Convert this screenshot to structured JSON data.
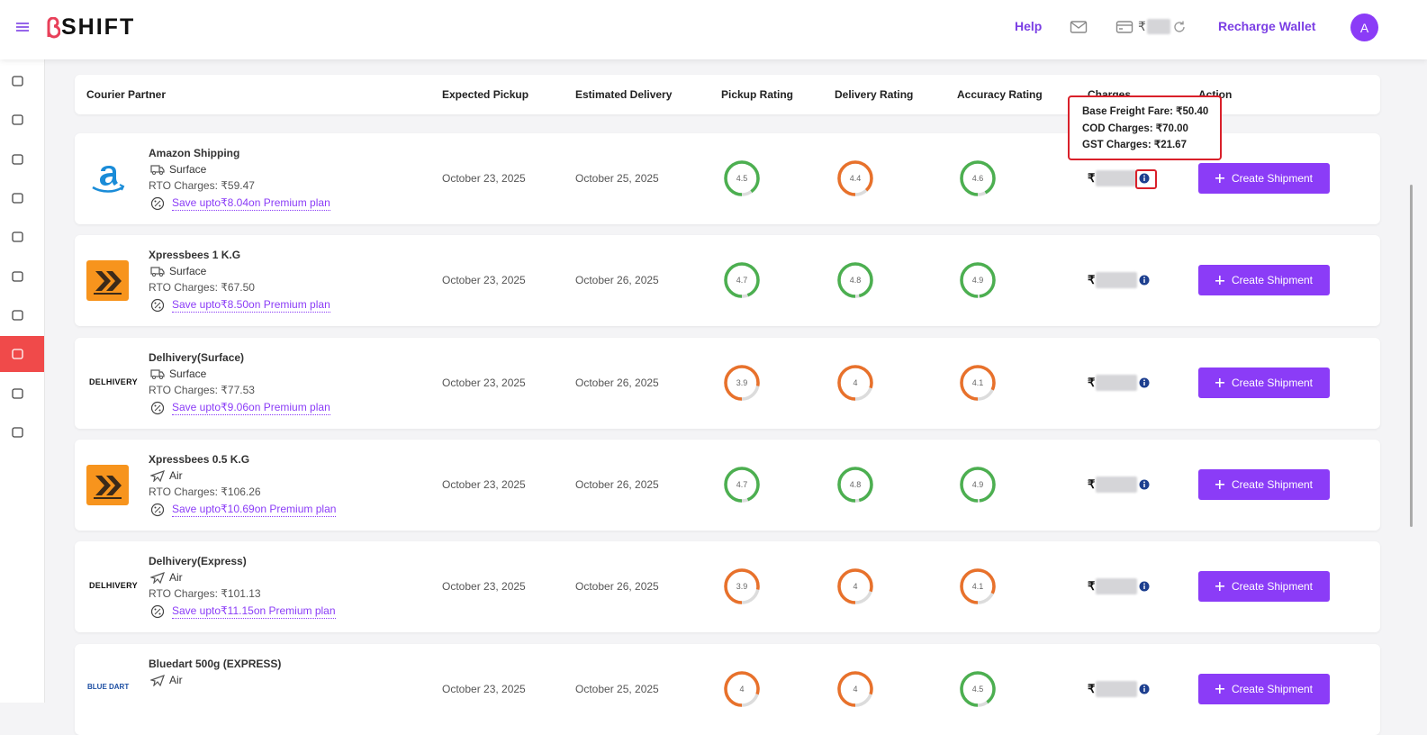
{
  "header": {
    "brand": "SHIFT",
    "help": "Help",
    "wallet_currency": "₹",
    "recharge": "Recharge Wallet",
    "avatar": "A"
  },
  "table": {
    "columns": [
      "Courier Partner",
      "Expected Pickup",
      "Estimated Delivery",
      "Pickup Rating",
      "Delivery Rating",
      "Accuracy Rating",
      "Charges",
      "Action"
    ],
    "rows": [
      {
        "name": "Amazon Shipping",
        "logo": "amazon",
        "mode_icon": "truck",
        "mode": "Surface",
        "rto": "RTO Charges: ₹59.47",
        "save": "Save upto₹8.04on Premium plan",
        "pickup": "October 23, 2025",
        "delivery": "October 25, 2025",
        "ratings": [
          4.5,
          4.4,
          4.6
        ],
        "charge_currency": "₹",
        "action": "Create Shipment"
      },
      {
        "name": "Xpressbees 1 K.G",
        "logo": "xpressbees",
        "mode_icon": "truck",
        "mode": "Surface",
        "rto": "RTO Charges: ₹67.50",
        "save": "Save upto₹8.50on Premium plan",
        "pickup": "October 23, 2025",
        "delivery": "October 26, 2025",
        "ratings": [
          4.7,
          4.8,
          4.9
        ],
        "charge_currency": "₹",
        "action": "Create Shipment"
      },
      {
        "name": "Delhivery(Surface)",
        "logo": "text",
        "logo_text": "DELHIVERY",
        "mode_icon": "truck",
        "mode": "Surface",
        "rto": "RTO Charges: ₹77.53",
        "save": "Save upto₹9.06on Premium plan",
        "pickup": "October 23, 2025",
        "delivery": "October 26, 2025",
        "ratings": [
          3.9,
          4,
          4.1
        ],
        "charge_currency": "₹",
        "action": "Create Shipment"
      },
      {
        "name": "Xpressbees 0.5 K.G",
        "logo": "xpressbees",
        "mode_icon": "plane",
        "mode": "Air",
        "rto": "RTO Charges: ₹106.26",
        "save": "Save upto₹10.69on Premium plan",
        "pickup": "October 23, 2025",
        "delivery": "October 26, 2025",
        "ratings": [
          4.7,
          4.8,
          4.9
        ],
        "charge_currency": "₹",
        "action": "Create Shipment"
      },
      {
        "name": "Delhivery(Express)",
        "logo": "text",
        "logo_text": "DELHIVERY",
        "mode_icon": "plane",
        "mode": "Air",
        "rto": "RTO Charges: ₹101.13",
        "save": "Save upto₹11.15on Premium plan",
        "pickup": "October 23, 2025",
        "delivery": "October 26, 2025",
        "ratings": [
          3.9,
          4,
          4.1
        ],
        "charge_currency": "₹",
        "action": "Create Shipment"
      },
      {
        "name": "Bluedart 500g (EXPRESS)",
        "logo": "bluedart",
        "logo_text": "BLUE DART",
        "mode_icon": "plane",
        "mode": "Air",
        "pickup": "October 23, 2025",
        "delivery": "October 25, 2025",
        "ratings": [
          4,
          4,
          4.5
        ],
        "charge_currency": "₹",
        "action": "Create Shipment"
      }
    ]
  },
  "tooltip": {
    "lines": [
      "Base Freight Fare: ₹50.40",
      "COD Charges: ₹70.00",
      "GST Charges: ₹21.67"
    ]
  }
}
